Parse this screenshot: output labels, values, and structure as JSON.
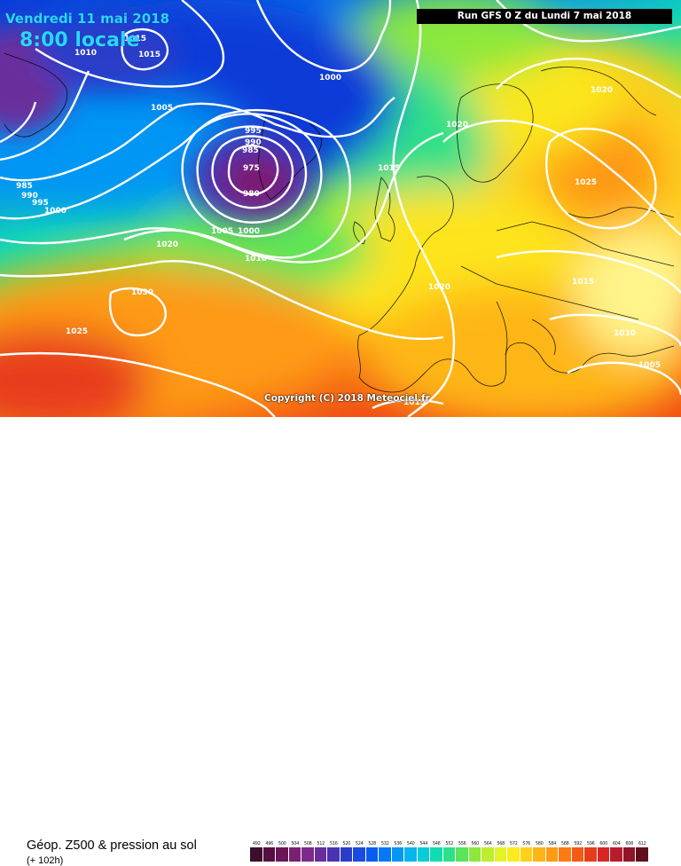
{
  "header": {
    "date": "Vendredi 11 mai 2018",
    "time": "8:00 locale",
    "run": "Run GFS 0 Z du Lundi 7 mai 2018"
  },
  "copyright": "Copyright (C) 2018 Meteociel.fr",
  "footer": {
    "product": "Géop. Z500 & pression au sol",
    "lead": "(+ 102h)"
  },
  "isobars": [
    {
      "label": "1010"
    },
    {
      "label": "1015"
    },
    {
      "label": "1015"
    },
    {
      "label": "1000"
    },
    {
      "label": "1005"
    },
    {
      "label": "995"
    },
    {
      "label": "990"
    },
    {
      "label": "985"
    },
    {
      "label": "975"
    },
    {
      "label": "980"
    },
    {
      "label": "985"
    },
    {
      "label": "990"
    },
    {
      "label": "995"
    },
    {
      "label": "1000"
    },
    {
      "label": "1005"
    },
    {
      "label": "1000"
    },
    {
      "label": "1010"
    },
    {
      "label": "1020"
    },
    {
      "label": "1030"
    },
    {
      "label": "1025"
    },
    {
      "label": "1015"
    },
    {
      "label": "1020"
    },
    {
      "label": "1020"
    },
    {
      "label": "1020"
    },
    {
      "label": "1025"
    },
    {
      "label": "1015"
    },
    {
      "label": "1010"
    },
    {
      "label": "1005"
    },
    {
      "label": "1015"
    }
  ],
  "scale": {
    "values": [
      "492",
      "496",
      "500",
      "504",
      "508",
      "512",
      "516",
      "520",
      "524",
      "528",
      "532",
      "536",
      "540",
      "544",
      "548",
      "552",
      "556",
      "560",
      "564",
      "568",
      "572",
      "576",
      "580",
      "584",
      "588",
      "592",
      "596",
      "600",
      "604",
      "608",
      "612"
    ],
    "colors": [
      "#3d0e2c",
      "#55103f",
      "#6b1656",
      "#7c1f72",
      "#7d2a8a",
      "#6a2d9c",
      "#4a33b0",
      "#2a3cc8",
      "#1a4be0",
      "#0a5cf0",
      "#0478f6",
      "#0696f4",
      "#08b4ee",
      "#08ccd8",
      "#10dcb4",
      "#2ee088",
      "#5ae458",
      "#8ce83a",
      "#bcee2e",
      "#e4f226",
      "#fbea1e",
      "#fdd11a",
      "#feb616",
      "#fe9a14",
      "#fc7a12",
      "#f45a14",
      "#e83c1c",
      "#d82626",
      "#b81c2c",
      "#8e1628",
      "#60101c"
    ]
  }
}
